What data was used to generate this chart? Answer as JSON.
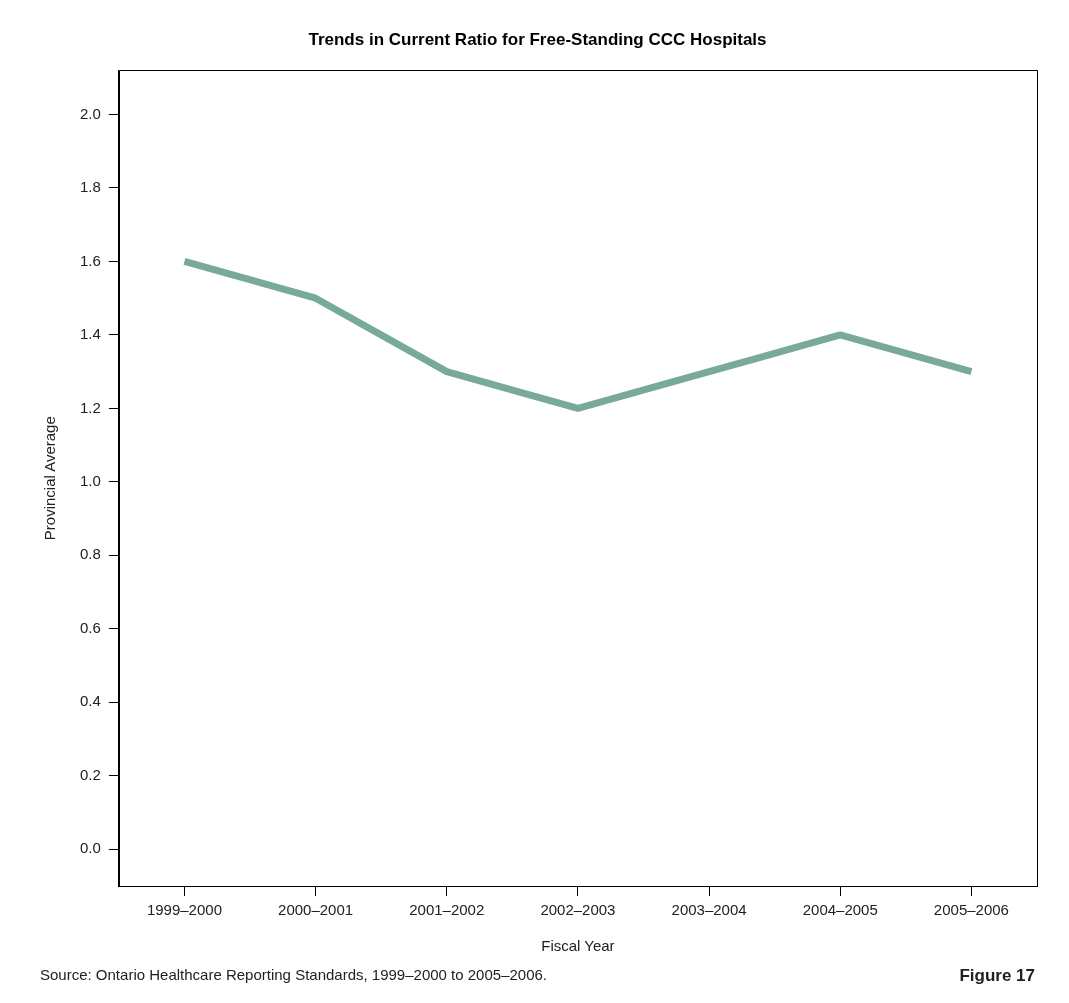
{
  "chart_data": {
    "type": "line",
    "title": "Trends in Current Ratio for Free-Standing CCC Hospitals",
    "xlabel": "Fiscal Year",
    "ylabel": "Provincial Average",
    "categories": [
      "1999–2000",
      "2000–2001",
      "2001–2002",
      "2002–2003",
      "2003–2004",
      "2004–2005",
      "2005–2006"
    ],
    "series": [
      {
        "color": "#78ab96",
        "values": [
          1.6,
          1.5,
          1.3,
          1.2,
          1.3,
          1.4,
          1.3
        ]
      }
    ],
    "ylim": [
      -0.1,
      2.12
    ],
    "yticks": [
      {
        "value": 0,
        "label": "0.0"
      },
      {
        "value": 0.2,
        "label": "0.2"
      },
      {
        "value": 0.4,
        "label": "0.4"
      },
      {
        "value": 0.6,
        "label": "0.6"
      },
      {
        "value": 0.8,
        "label": "0.8"
      },
      {
        "value": 1,
        "label": "1.0"
      },
      {
        "value": 1.2,
        "label": "1.2"
      },
      {
        "value": 1.4,
        "label": "1.4"
      },
      {
        "value": 1.6,
        "label": "1.6"
      },
      {
        "value": 1.8,
        "label": "1.8"
      },
      {
        "value": 2,
        "label": "2.0"
      }
    ],
    "grid": false,
    "legend": false,
    "marker": "none",
    "line_style": "solid",
    "annotations": [
      "Source: Ontario Healthcare Reporting Standards, 1999–2000 to 2005–2006.",
      "Figure 17"
    ]
  }
}
